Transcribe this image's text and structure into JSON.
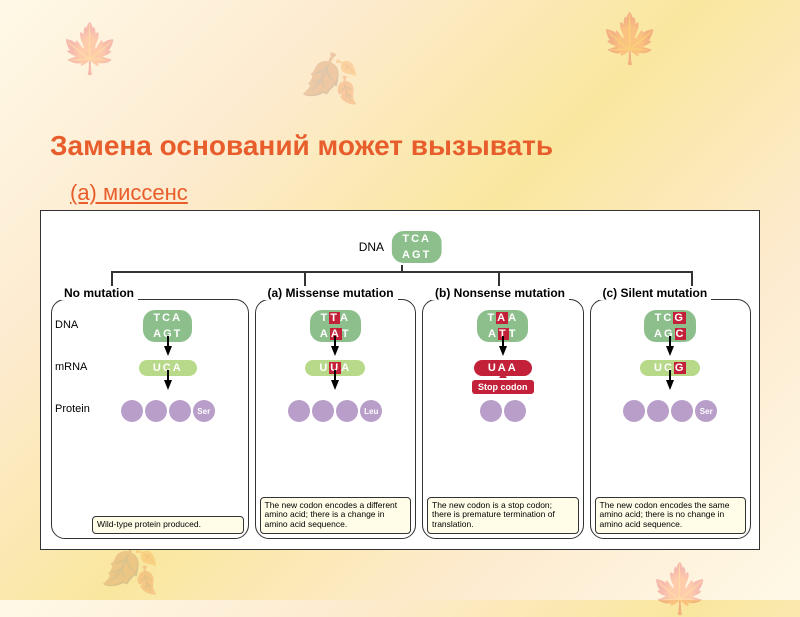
{
  "colors": {
    "title": "#e85d2c",
    "subtitle": "#e85d2c",
    "dna_bg": "#8dbf8d",
    "mrna_bg": "#b8d88a",
    "mutation_hl": "#c32139",
    "protein_ball": "#b89ec9",
    "caption_bg": "#fffde7",
    "border": "#333333"
  },
  "title": "Замена оснований может вызывать",
  "subtitle": "(а) миссенс",
  "top_dna": {
    "label": "DNA",
    "top": "TCA",
    "bottom": "AGT"
  },
  "row_labels": {
    "dna": "DNA",
    "mrna": "mRNA",
    "protein": "Protein"
  },
  "stop_label": "Stop codon",
  "panels": [
    {
      "title": "No mutation",
      "dna_top": "TCA",
      "dna_bottom": "AGT",
      "dna_top_hl": [],
      "dna_bottom_hl": [],
      "mrna": "UCA",
      "mrna_hl": [],
      "aa_label": "Ser",
      "aa_count": 3,
      "show_aa_label": true,
      "stop": false,
      "caption": "Wild-type protein produced."
    },
    {
      "title": "(a)  Missense mutation",
      "dna_top": "TTA",
      "dna_bottom": "AAT",
      "dna_top_hl": [
        1
      ],
      "dna_bottom_hl": [
        1
      ],
      "mrna": "UUA",
      "mrna_hl": [
        1
      ],
      "aa_label": "Leu",
      "aa_count": 3,
      "show_aa_label": true,
      "stop": false,
      "caption": "The new codon encodes a different amino acid; there is a change in amino acid sequence."
    },
    {
      "title": "(b)  Nonsense mutation",
      "dna_top": "TAA",
      "dna_bottom": "ATT",
      "dna_top_hl": [
        1
      ],
      "dna_bottom_hl": [
        1
      ],
      "mrna": "UAA",
      "mrna_hl": [
        0,
        1,
        2
      ],
      "aa_label": "",
      "aa_count": 2,
      "show_aa_label": false,
      "stop": true,
      "caption": "The new codon is a stop codon; there is premature termination of translation."
    },
    {
      "title": "(c)  Silent mutation",
      "dna_top": "TCG",
      "dna_bottom": "AGC",
      "dna_top_hl": [
        2
      ],
      "dna_bottom_hl": [
        2
      ],
      "mrna": "UCG",
      "mrna_hl": [
        2
      ],
      "aa_label": "Ser",
      "aa_count": 3,
      "show_aa_label": true,
      "stop": false,
      "caption": "The new codon encodes the same amino acid; there is no change in amino acid sequence."
    }
  ]
}
